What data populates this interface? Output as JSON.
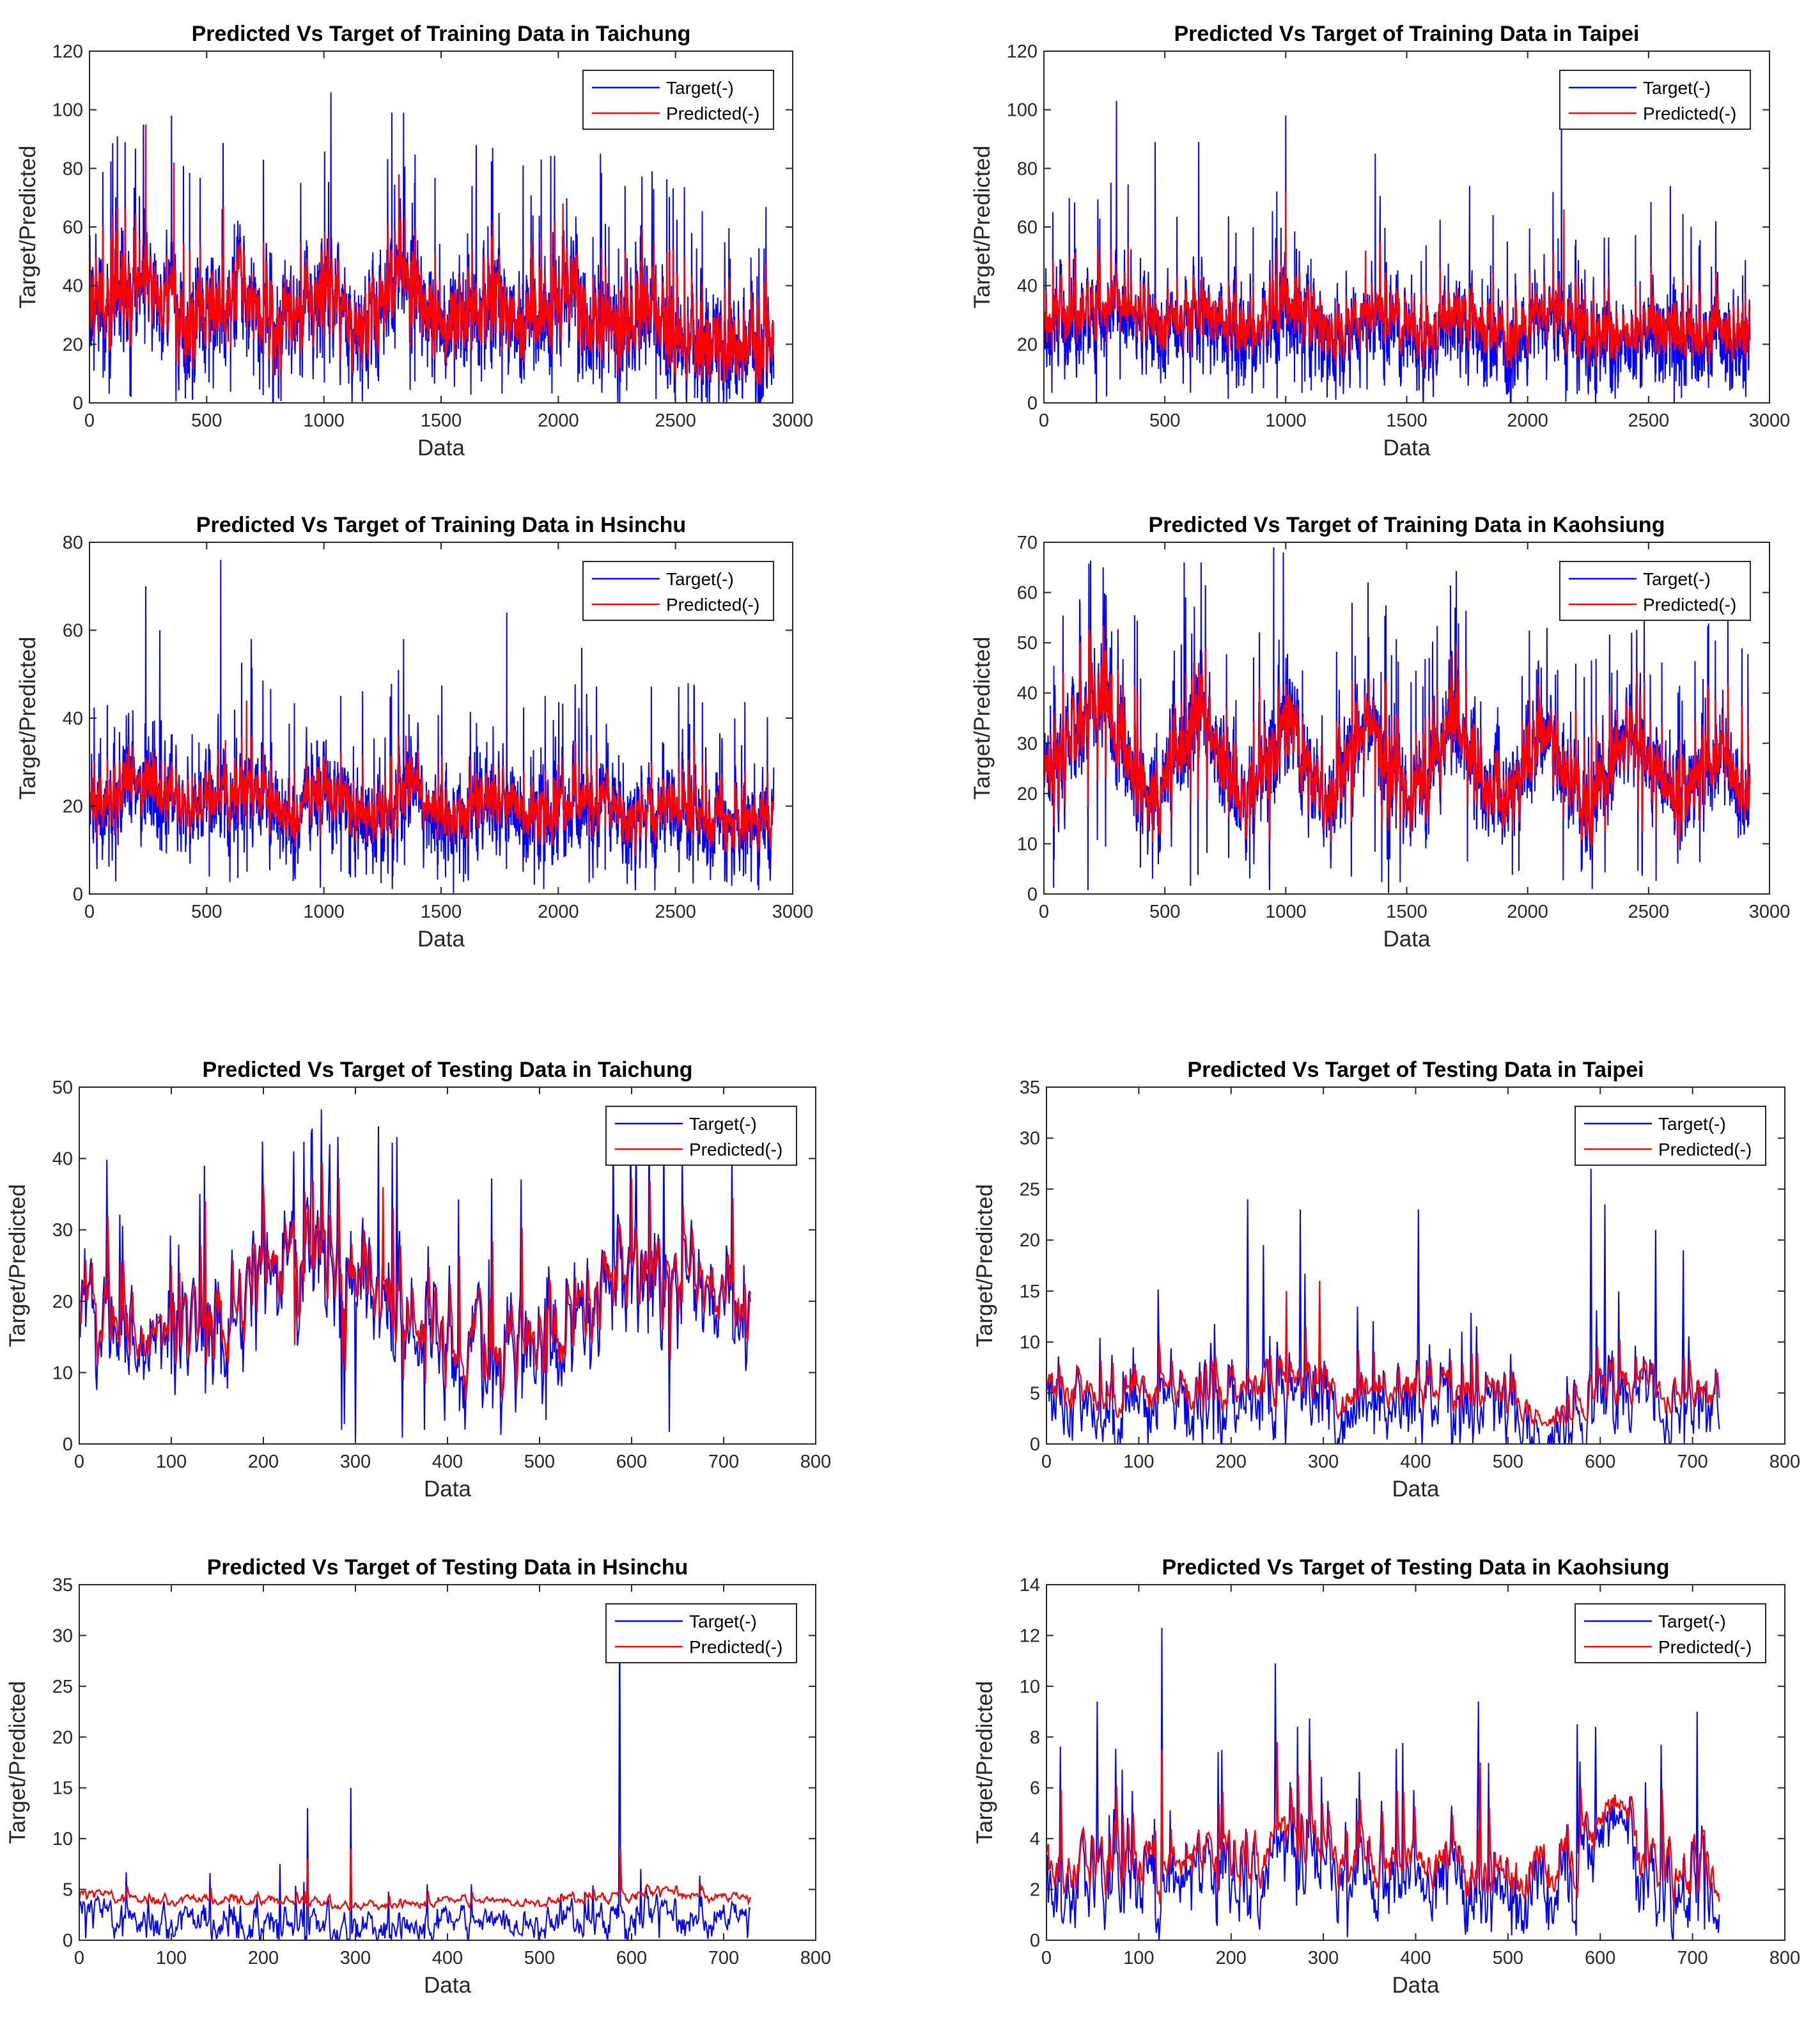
{
  "colors": {
    "target": "#0000FF",
    "predicted": "#FF0000",
    "axis": "#262626"
  },
  "chart_data": [
    {
      "type": "line",
      "title": "Predicted Vs Target of Training Data in Taichung",
      "xlabel": "Data",
      "ylabel": "Target/Predicted",
      "xlim": [
        0,
        3000
      ],
      "ylim": [
        0,
        120
      ],
      "xticks": [
        0,
        500,
        1000,
        1500,
        2000,
        2500,
        3000
      ],
      "yticks": [
        0,
        20,
        40,
        60,
        80,
        100,
        120
      ],
      "legend": [
        "Target(-)",
        "Predicted(-)"
      ],
      "legend_position": "top-right",
      "n_points": 2920,
      "series_summary": {
        "base": [
          [
            0,
            34
          ],
          [
            250,
            40
          ],
          [
            400,
            26
          ],
          [
            650,
            38
          ],
          [
            800,
            24
          ],
          [
            1000,
            38
          ],
          [
            1150,
            26
          ],
          [
            1330,
            44
          ],
          [
            1500,
            22
          ],
          [
            1700,
            34
          ],
          [
            1850,
            24
          ],
          [
            2050,
            36
          ],
          [
            2200,
            22
          ],
          [
            2400,
            32
          ],
          [
            2550,
            18
          ],
          [
            2700,
            16
          ],
          [
            2920,
            22
          ]
        ],
        "target_noise": 11,
        "predicted_offset": 1,
        "predicted_scale": 0.75,
        "target_spikes": [
          [
            230,
            95
          ],
          [
            350,
            98
          ],
          [
            1030,
            106
          ],
          [
            1290,
            99
          ],
          [
            1340,
            99
          ],
          [
            1650,
            88
          ],
          [
            2180,
            85
          ],
          [
            2400,
            79
          ],
          [
            1850,
            81
          ]
        ],
        "predicted_spikes": [
          [
            240,
            95
          ],
          [
            360,
            82
          ],
          [
            1320,
            78
          ],
          [
            2020,
            68
          ]
        ]
      }
    },
    {
      "type": "line",
      "title": "Predicted Vs Target of Training Data in Taipei",
      "xlabel": "Data",
      "ylabel": "Target/Predicted",
      "xlim": [
        0,
        3000
      ],
      "ylim": [
        0,
        120
      ],
      "xticks": [
        0,
        500,
        1000,
        1500,
        2000,
        2500,
        3000
      ],
      "yticks": [
        0,
        20,
        40,
        60,
        80,
        100,
        120
      ],
      "legend": [
        "Target(-)",
        "Predicted(-)"
      ],
      "legend_position": "top-right",
      "n_points": 2920,
      "series_summary": {
        "base": [
          [
            0,
            26
          ],
          [
            300,
            32
          ],
          [
            500,
            22
          ],
          [
            650,
            30
          ],
          [
            850,
            20
          ],
          [
            1000,
            32
          ],
          [
            1200,
            20
          ],
          [
            1380,
            30
          ],
          [
            1550,
            20
          ],
          [
            1720,
            28
          ],
          [
            1900,
            20
          ],
          [
            2100,
            28
          ],
          [
            2300,
            20
          ],
          [
            2500,
            24
          ],
          [
            2700,
            20
          ],
          [
            2920,
            22
          ]
        ],
        "target_noise": 9,
        "predicted_offset": 3,
        "predicted_scale": 0.65,
        "target_spikes": [
          [
            300,
            103
          ],
          [
            1000,
            98
          ],
          [
            2140,
            99
          ],
          [
            460,
            89
          ],
          [
            1370,
            85
          ],
          [
            1760,
            74
          ],
          [
            2590,
            74
          ],
          [
            640,
            89
          ]
        ],
        "predicted_spikes": [
          [
            1000,
            72
          ],
          [
            2150,
            66
          ],
          [
            1330,
            52
          ]
        ]
      }
    },
    {
      "type": "line",
      "title": "Predicted Vs Target of Training Data in Hsinchu",
      "xlabel": "Data",
      "ylabel": "Target/Predicted",
      "xlim": [
        0,
        3000
      ],
      "ylim": [
        0,
        80
      ],
      "xticks": [
        0,
        500,
        1000,
        1500,
        2000,
        2500,
        3000
      ],
      "yticks": [
        0,
        20,
        40,
        60,
        80
      ],
      "legend": [
        "Target(-)",
        "Predicted(-)"
      ],
      "legend_position": "top-right",
      "n_points": 2920,
      "series_summary": {
        "base": [
          [
            0,
            19
          ],
          [
            250,
            25
          ],
          [
            450,
            18
          ],
          [
            650,
            24
          ],
          [
            850,
            16
          ],
          [
            1000,
            23
          ],
          [
            1200,
            16
          ],
          [
            1370,
            24
          ],
          [
            1550,
            16
          ],
          [
            1750,
            22
          ],
          [
            1950,
            15
          ],
          [
            2100,
            22
          ],
          [
            2300,
            15
          ],
          [
            2500,
            20
          ],
          [
            2700,
            15
          ],
          [
            2920,
            17
          ]
        ],
        "target_noise": 6,
        "predicted_offset": 1,
        "predicted_scale": 0.6,
        "target_spikes": [
          [
            240,
            70
          ],
          [
            560,
            76
          ],
          [
            690,
            58
          ],
          [
            1340,
            58
          ],
          [
            1780,
            64
          ],
          [
            2100,
            56
          ],
          [
            300,
            60
          ]
        ],
        "predicted_spikes": [
          [
            670,
            44
          ],
          [
            1350,
            36
          ],
          [
            580,
            35
          ]
        ]
      }
    },
    {
      "type": "line",
      "title": "Predicted Vs Target of Training Data in Kaohsiung",
      "xlabel": "Data",
      "ylabel": "Target/Predicted",
      "xlim": [
        0,
        3000
      ],
      "ylim": [
        0,
        70
      ],
      "xticks": [
        0,
        500,
        1000,
        1500,
        2000,
        2500,
        3000
      ],
      "yticks": [
        0,
        10,
        20,
        30,
        40,
        50,
        60,
        70
      ],
      "legend": [
        "Target(-)",
        "Predicted(-)"
      ],
      "legend_position": "top-right",
      "n_points": 2920,
      "series_summary": {
        "base": [
          [
            0,
            22
          ],
          [
            230,
            40
          ],
          [
            450,
            18
          ],
          [
            650,
            36
          ],
          [
            820,
            18
          ],
          [
            1000,
            34
          ],
          [
            1180,
            18
          ],
          [
            1340,
            35
          ],
          [
            1520,
            17
          ],
          [
            1700,
            35
          ],
          [
            1880,
            17
          ],
          [
            2070,
            33
          ],
          [
            2250,
            17
          ],
          [
            2430,
            32
          ],
          [
            2620,
            17
          ],
          [
            2800,
            30
          ],
          [
            2920,
            18
          ]
        ],
        "target_noise": 6,
        "predicted_offset": 0,
        "predicted_scale": 0.75,
        "target_spikes": [
          [
            245,
            65
          ],
          [
            580,
            66
          ],
          [
            650,
            66
          ],
          [
            950,
            69
          ],
          [
            990,
            68
          ],
          [
            1340,
            62
          ],
          [
            1700,
            57
          ],
          [
            2080,
            53
          ],
          [
            2430,
            52
          ]
        ],
        "predicted_spikes": [
          [
            640,
            46
          ],
          [
            250,
            43
          ]
        ]
      }
    },
    {
      "type": "line",
      "title": "Predicted Vs Target of Testing Data in Taichung",
      "xlabel": "Data",
      "ylabel": "Target/Predicted",
      "xlim": [
        0,
        800
      ],
      "ylim": [
        0,
        50
      ],
      "xticks": [
        0,
        100,
        200,
        300,
        400,
        500,
        600,
        700,
        800
      ],
      "yticks": [
        0,
        10,
        20,
        30,
        40,
        50
      ],
      "legend": [
        "Target(-)",
        "Predicted(-)"
      ],
      "legend_position": "top-right",
      "n_points": 730,
      "series_summary": {
        "base": [
          [
            0,
            18
          ],
          [
            60,
            15
          ],
          [
            130,
            14
          ],
          [
            170,
            20
          ],
          [
            230,
            25
          ],
          [
            300,
            22
          ],
          [
            360,
            19
          ],
          [
            420,
            13
          ],
          [
            470,
            12
          ],
          [
            520,
            16
          ],
          [
            580,
            22
          ],
          [
            620,
            24
          ],
          [
            680,
            21
          ],
          [
            730,
            19
          ]
        ],
        "target_noise": 5,
        "predicted_offset": 1,
        "predicted_scale": 0.85,
        "target_spikes": [
          [
            136,
            39
          ],
          [
            233,
            41
          ],
          [
            252,
            43.5
          ],
          [
            272,
            42
          ],
          [
            300,
            0
          ],
          [
            325,
            44.5
          ],
          [
            345,
            43
          ],
          [
            580,
            43
          ],
          [
            605,
            43
          ],
          [
            635,
            44
          ]
        ],
        "predicted_spikes": [
          [
            137,
            34
          ],
          [
            330,
            36
          ]
        ]
      }
    },
    {
      "type": "line",
      "title": "Predicted Vs Target of Testing Data in Taipei",
      "xlabel": "Data",
      "ylabel": "Target/Predicted",
      "xlim": [
        0,
        800
      ],
      "ylim": [
        0,
        35
      ],
      "xticks": [
        0,
        100,
        200,
        300,
        400,
        500,
        600,
        700,
        800
      ],
      "yticks": [
        0,
        5,
        10,
        15,
        20,
        25,
        30,
        35
      ],
      "legend": [
        "Target(-)",
        "Predicted(-)"
      ],
      "legend_position": "top-right",
      "n_points": 730,
      "series_summary": {
        "base": [
          [
            0,
            4
          ],
          [
            150,
            3.5
          ],
          [
            200,
            4
          ],
          [
            260,
            5
          ],
          [
            320,
            3.5
          ],
          [
            400,
            4.5
          ],
          [
            480,
            3.5
          ],
          [
            520,
            2
          ],
          [
            560,
            1
          ],
          [
            600,
            4
          ],
          [
            650,
            4.5
          ],
          [
            730,
            3
          ]
        ],
        "target_noise": 2.5,
        "predicted_offset": 1.4,
        "predicted_scale": 0.65,
        "target_spikes": [
          [
            218,
            24
          ],
          [
            235,
            19.5
          ],
          [
            275,
            23
          ],
          [
            403,
            23
          ],
          [
            590,
            27
          ],
          [
            605,
            23.5
          ],
          [
            660,
            21
          ],
          [
            690,
            19
          ]
        ],
        "predicted_spikes": [
          [
            296,
            16
          ],
          [
            260,
            15
          ]
        ]
      }
    },
    {
      "type": "line",
      "title": "Predicted Vs Target of Testing Data in Hsinchu",
      "xlabel": "Data",
      "ylabel": "Target/Predicted",
      "xlim": [
        0,
        800
      ],
      "ylim": [
        0,
        35
      ],
      "xticks": [
        0,
        100,
        200,
        300,
        400,
        500,
        600,
        700,
        800
      ],
      "yticks": [
        0,
        5,
        10,
        15,
        20,
        25,
        30,
        35
      ],
      "legend": [
        "Target(-)",
        "Predicted(-)"
      ],
      "legend_position": "top-right",
      "n_points": 730,
      "series_summary": {
        "base": [
          [
            0,
            2
          ],
          [
            100,
            1.5
          ],
          [
            200,
            1.8
          ],
          [
            300,
            1
          ],
          [
            400,
            1.5
          ],
          [
            500,
            1.3
          ],
          [
            580,
            2
          ],
          [
            650,
            2.5
          ],
          [
            730,
            1.5
          ]
        ],
        "target_noise": 1,
        "predicted_offset": 2.3,
        "predicted_scale": 0.35,
        "target_spikes": [
          [
            218,
            7.5
          ],
          [
            248,
            13
          ],
          [
            295,
            15
          ],
          [
            587,
            33
          ],
          [
            610,
            7
          ]
        ],
        "predicted_spikes": [
          [
            248,
            8
          ],
          [
            295,
            9
          ],
          [
            588,
            9
          ]
        ]
      }
    },
    {
      "type": "line",
      "title": "Predicted Vs Target of Testing Data in Kaohsiung",
      "xlabel": "Data",
      "ylabel": "Target/Predicted",
      "xlim": [
        0,
        800
      ],
      "ylim": [
        0,
        14
      ],
      "xticks": [
        0,
        100,
        200,
        300,
        400,
        500,
        600,
        700,
        800
      ],
      "yticks": [
        0,
        2,
        4,
        6,
        8,
        10,
        12,
        14
      ],
      "legend": [
        "Target(-)",
        "Predicted(-)"
      ],
      "legend_position": "top-right",
      "n_points": 730,
      "series_summary": {
        "base": [
          [
            0,
            2.5
          ],
          [
            100,
            2
          ],
          [
            200,
            2.5
          ],
          [
            260,
            4
          ],
          [
            320,
            2.5
          ],
          [
            400,
            2.5
          ],
          [
            500,
            2
          ],
          [
            580,
            3
          ],
          [
            610,
            4.5
          ],
          [
            650,
            3
          ],
          [
            730,
            2
          ]
        ],
        "target_noise": 1.1,
        "predicted_offset": 0.7,
        "predicted_scale": 0.75,
        "target_spikes": [
          [
            55,
            9.4
          ],
          [
            125,
            12.3
          ],
          [
            248,
            10.9
          ],
          [
            468,
            9.4
          ],
          [
            575,
            8.5
          ],
          [
            595,
            8.4
          ],
          [
            705,
            9
          ]
        ],
        "predicted_spikes": [
          [
            125,
            7.5
          ],
          [
            250,
            7.8
          ],
          [
            470,
            7
          ]
        ]
      }
    }
  ]
}
